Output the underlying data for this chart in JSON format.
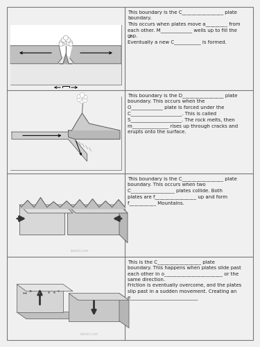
{
  "texts": [
    "This boundary is the C_________________ plate\nboundary.\nThis occurs when plates move a_________ from\neach other. M_____________ wells up to fill the\ngap.\nEventually a new C___________ is formed.",
    "This boundary is the D_________________ plate\nboundary. This occurs when the\nO_____________ plate is forced under the\nC_____________________. This is called\nS_____________________. The rock melts, then\nm_______________ rises up through cracks and\nerupts onto the surface.",
    "This boundary is the C_________________ plate\nboundary. This occurs when two\nC__________________ plates collide. Both\nplates are f_________________ up and form\nf___________ Mountains.",
    "This is the C__________________ plate\nboundary. This happens when plates slide past\neach other in o________________________ or the\nsame direction.\nFriction is eventually overcome, and the plates\nslip past in a sudden movement. Creating an\ne____________________________"
  ],
  "text_color": "#222222",
  "font_size": 5.0,
  "cell_line_color": "#777777",
  "bg_color": "#f0f0f0",
  "panel_bg": "#ffffff",
  "watermark_color": "#bbbbbb"
}
